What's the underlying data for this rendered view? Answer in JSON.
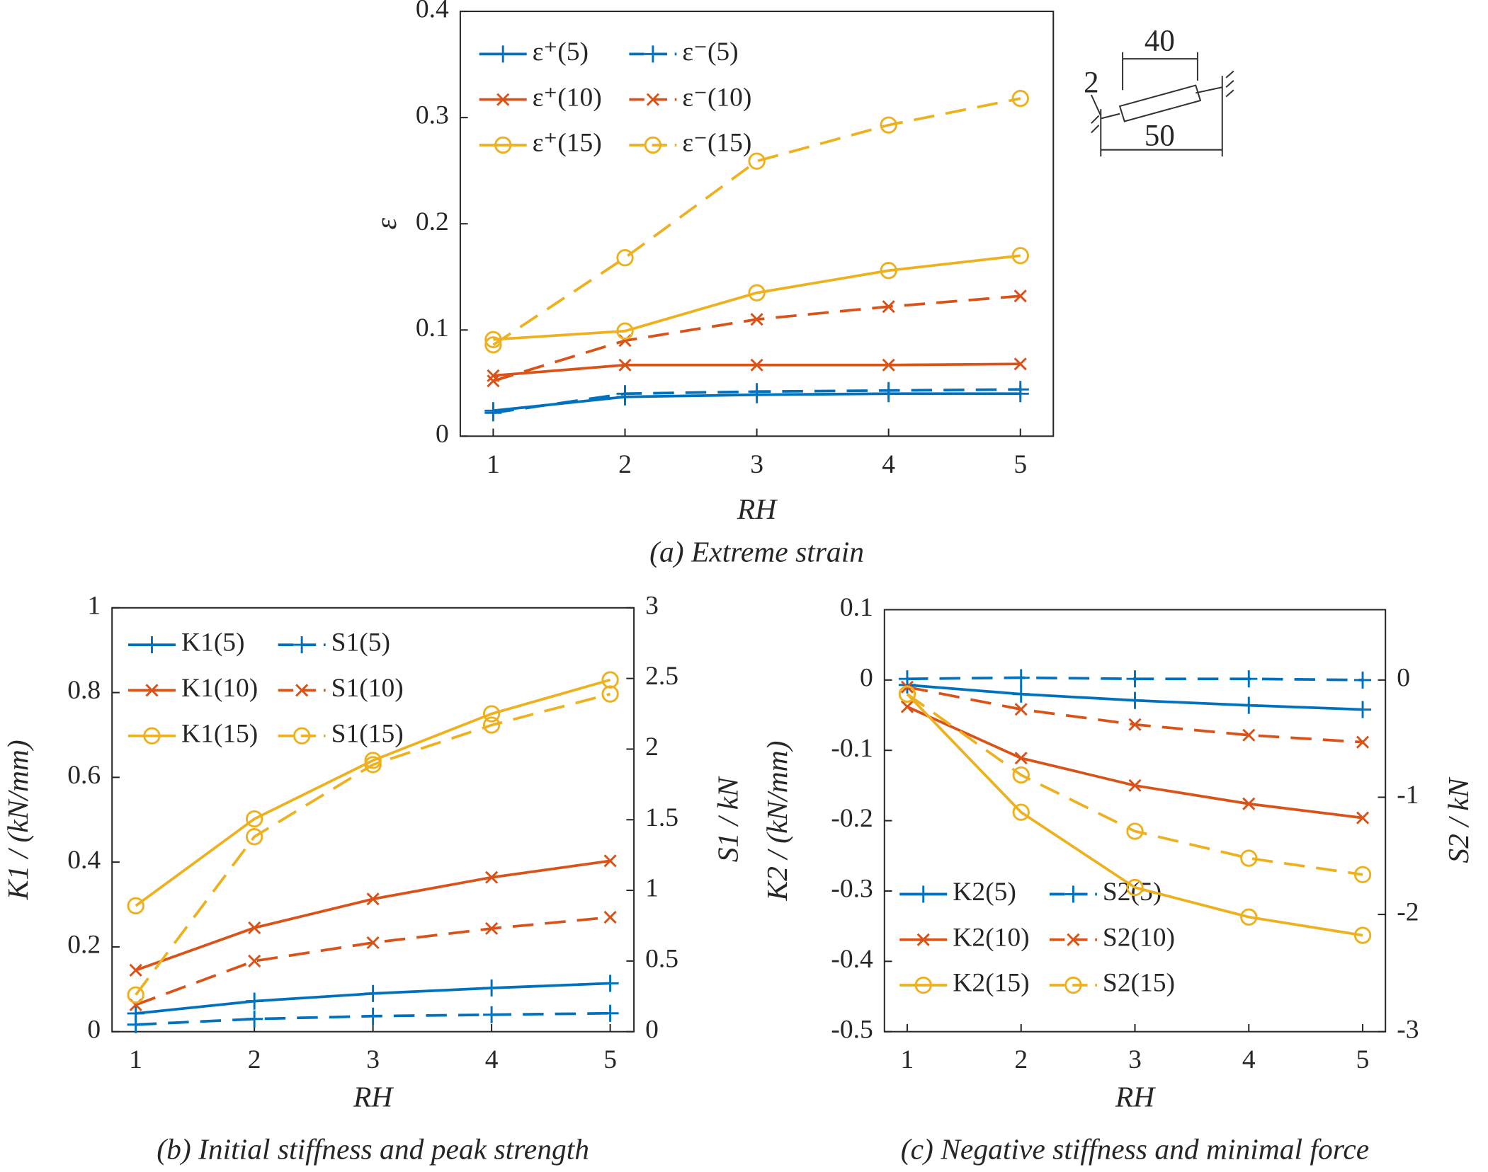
{
  "chart_data": [
    {
      "type": "line",
      "caption": "(a) Extreme strain",
      "xlabel": "RH",
      "ylabel": "ε",
      "x": [
        1,
        2,
        3,
        4,
        5
      ],
      "xlim": [
        0.75,
        5.25
      ],
      "xticks": [
        1,
        2,
        3,
        4,
        5
      ],
      "ylim": [
        0,
        0.4
      ],
      "yticks": [
        0,
        0.1,
        0.2,
        0.3,
        0.4
      ],
      "grid": false,
      "legend": "upper left",
      "inset_labels": [
        "40",
        "2",
        "50"
      ],
      "series": [
        {
          "name": "ε⁺(5)",
          "color": "#0072bd",
          "linestyle": "solid",
          "marker": "+",
          "values": [
            0.024,
            0.037,
            0.039,
            0.04,
            0.04
          ]
        },
        {
          "name": "ε⁻(5)",
          "color": "#0072bd",
          "linestyle": "dashed",
          "marker": "+",
          "values": [
            0.022,
            0.04,
            0.042,
            0.043,
            0.044
          ]
        },
        {
          "name": "ε⁺(10)",
          "color": "#d95319",
          "linestyle": "solid",
          "marker": "x",
          "values": [
            0.057,
            0.067,
            0.067,
            0.067,
            0.068
          ]
        },
        {
          "name": "ε⁻(10)",
          "color": "#d95319",
          "linestyle": "dashed",
          "marker": "x",
          "values": [
            0.052,
            0.09,
            0.11,
            0.122,
            0.132
          ]
        },
        {
          "name": "ε⁺(15)",
          "color": "#edb120",
          "linestyle": "solid",
          "marker": "o",
          "values": [
            0.091,
            0.099,
            0.135,
            0.156,
            0.17
          ]
        },
        {
          "name": "ε⁻(15)",
          "color": "#edb120",
          "linestyle": "dashed",
          "marker": "o",
          "values": [
            0.086,
            0.168,
            0.259,
            0.293,
            0.318
          ]
        }
      ]
    },
    {
      "type": "line",
      "caption": "(b) Initial stiffness and peak strength",
      "xlabel": "RH",
      "ylabel": "K1 / (kN/mm)",
      "y2label": "S1 / kN",
      "x": [
        1,
        2,
        3,
        4,
        5
      ],
      "xlim": [
        0.8,
        5.2
      ],
      "xticks": [
        1,
        2,
        3,
        4,
        5
      ],
      "ylim": [
        0,
        1
      ],
      "yticks": [
        0,
        0.2,
        0.4,
        0.6,
        0.8,
        1
      ],
      "y2lim": [
        0,
        3
      ],
      "y2ticks": [
        0,
        0.5,
        1,
        1.5,
        2,
        2.5,
        3
      ],
      "grid": false,
      "legend": "upper left",
      "series": [
        {
          "name": "K1(5)",
          "color": "#0072bd",
          "linestyle": "solid",
          "marker": "+",
          "values": [
            0.043,
            0.072,
            0.09,
            0.103,
            0.114
          ]
        },
        {
          "name": "S1(5)",
          "color": "#0072bd",
          "linestyle": "dashed",
          "marker": "+",
          "axis": "y2",
          "values": [
            0.05,
            0.09,
            0.11,
            0.12,
            0.13
          ]
        },
        {
          "name": "K1(10)",
          "color": "#d95319",
          "linestyle": "solid",
          "marker": "x",
          "values": [
            0.145,
            0.245,
            0.313,
            0.364,
            0.403
          ]
        },
        {
          "name": "S1(10)",
          "color": "#d95319",
          "linestyle": "dashed",
          "marker": "x",
          "axis": "y2",
          "values": [
            0.19,
            0.5,
            0.63,
            0.73,
            0.81
          ]
        },
        {
          "name": "K1(15)",
          "color": "#edb120",
          "linestyle": "solid",
          "marker": "o",
          "values": [
            0.297,
            0.502,
            0.64,
            0.75,
            0.83
          ]
        },
        {
          "name": "S1(15)",
          "color": "#edb120",
          "linestyle": "dashed",
          "marker": "o",
          "axis": "y2",
          "values": [
            0.26,
            1.38,
            1.89,
            2.17,
            2.39
          ]
        }
      ]
    },
    {
      "type": "line",
      "caption": "(c) Negative stiffness and minimal force",
      "xlabel": "RH",
      "ylabel": "K2 / (kN/mm)",
      "y2label": "S2 / kN",
      "x": [
        1,
        2,
        3,
        4,
        5
      ],
      "xlim": [
        0.8,
        5.2
      ],
      "xticks": [
        1,
        2,
        3,
        4,
        5
      ],
      "ylim": [
        -0.5,
        0.1
      ],
      "yticks": [
        -0.5,
        -0.4,
        -0.3,
        -0.2,
        -0.1,
        0,
        0.1
      ],
      "y2lim": [
        -3,
        0.6
      ],
      "y2ticks": [
        -3,
        -2,
        -1,
        0
      ],
      "grid": false,
      "legend": "lower left",
      "series": [
        {
          "name": "K2(5)",
          "color": "#0072bd",
          "linestyle": "solid",
          "marker": "+",
          "values": [
            -0.007,
            -0.02,
            -0.029,
            -0.036,
            -0.042
          ]
        },
        {
          "name": "S2(5)",
          "color": "#0072bd",
          "linestyle": "dashed",
          "marker": "+",
          "axis": "y2",
          "values": [
            0.01,
            0.02,
            0.01,
            0.01,
            0.0
          ]
        },
        {
          "name": "K2(10)",
          "color": "#d95319",
          "linestyle": "solid",
          "marker": "x",
          "values": [
            -0.038,
            -0.111,
            -0.15,
            -0.176,
            -0.196
          ]
        },
        {
          "name": "S2(10)",
          "color": "#d95319",
          "linestyle": "dashed",
          "marker": "x",
          "axis": "y2",
          "values": [
            -0.06,
            -0.25,
            -0.38,
            -0.47,
            -0.53
          ]
        },
        {
          "name": "K2(15)",
          "color": "#edb120",
          "linestyle": "solid",
          "marker": "o",
          "values": [
            -0.02,
            -0.188,
            -0.295,
            -0.337,
            -0.363
          ]
        },
        {
          "name": "S2(15)",
          "color": "#edb120",
          "linestyle": "dashed",
          "marker": "o",
          "axis": "y2",
          "values": [
            -0.12,
            -0.81,
            -1.29,
            -1.52,
            -1.66
          ]
        }
      ]
    }
  ]
}
